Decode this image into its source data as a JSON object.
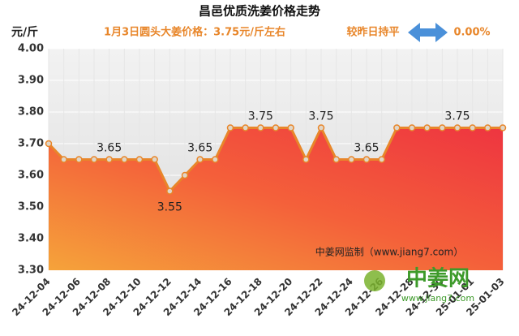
{
  "chart_data": {
    "type": "area-line",
    "title": "昌邑优质洗姜价格走势",
    "y_label": "元/斤",
    "subtitle": "1月3日圆头大姜价格：3.75元/斤左右",
    "change_text": "较昨日持平",
    "change_value": "0.00%",
    "watermark": "中姜网监制（www.jiang7.com）",
    "categories": [
      "24-12-04",
      null,
      "24-12-06",
      null,
      "24-12-08",
      null,
      "24-12-10",
      null,
      "24-12-12",
      null,
      "24-12-14",
      null,
      "24-12-16",
      null,
      "24-12-18",
      null,
      "24-12-20",
      null,
      "24-12-22",
      null,
      "24-12-24",
      null,
      "24-12-26",
      null,
      "24-12-28",
      null,
      "24-12-30",
      null,
      "25-01-01",
      null,
      "25-01-03"
    ],
    "values": [
      3.7,
      3.65,
      3.65,
      3.65,
      3.65,
      3.65,
      3.65,
      3.65,
      3.55,
      3.6,
      3.65,
      3.65,
      3.75,
      3.75,
      3.75,
      3.75,
      3.75,
      3.65,
      3.75,
      3.65,
      3.65,
      3.65,
      3.65,
      3.75,
      3.75,
      3.75,
      3.75,
      3.75,
      3.75,
      3.75,
      3.75
    ],
    "value_labels": [
      null,
      null,
      null,
      null,
      "3.65",
      null,
      null,
      null,
      "3.55",
      null,
      "3.65",
      null,
      null,
      null,
      "3.75",
      null,
      null,
      null,
      "3.75",
      null,
      null,
      "3.65",
      null,
      null,
      null,
      null,
      null,
      "3.75",
      null,
      null,
      null
    ],
    "color": "#e8862a",
    "ylim": [
      3.3,
      4.0
    ],
    "yticks": [
      {
        "value": 3.3,
        "label": "3.30"
      },
      {
        "value": 3.4,
        "label": "3.40"
      },
      {
        "value": 3.5,
        "label": "3.50"
      },
      {
        "value": 3.6,
        "label": "3.60"
      },
      {
        "value": 3.7,
        "label": "3.70"
      },
      {
        "value": 3.8,
        "label": "3.80"
      },
      {
        "value": 3.9,
        "label": "3.90"
      },
      {
        "value": 4.0,
        "label": "4.00"
      }
    ],
    "grid": true
  },
  "logo": {
    "name": "中姜网",
    "url": "www.jiang7.com"
  }
}
